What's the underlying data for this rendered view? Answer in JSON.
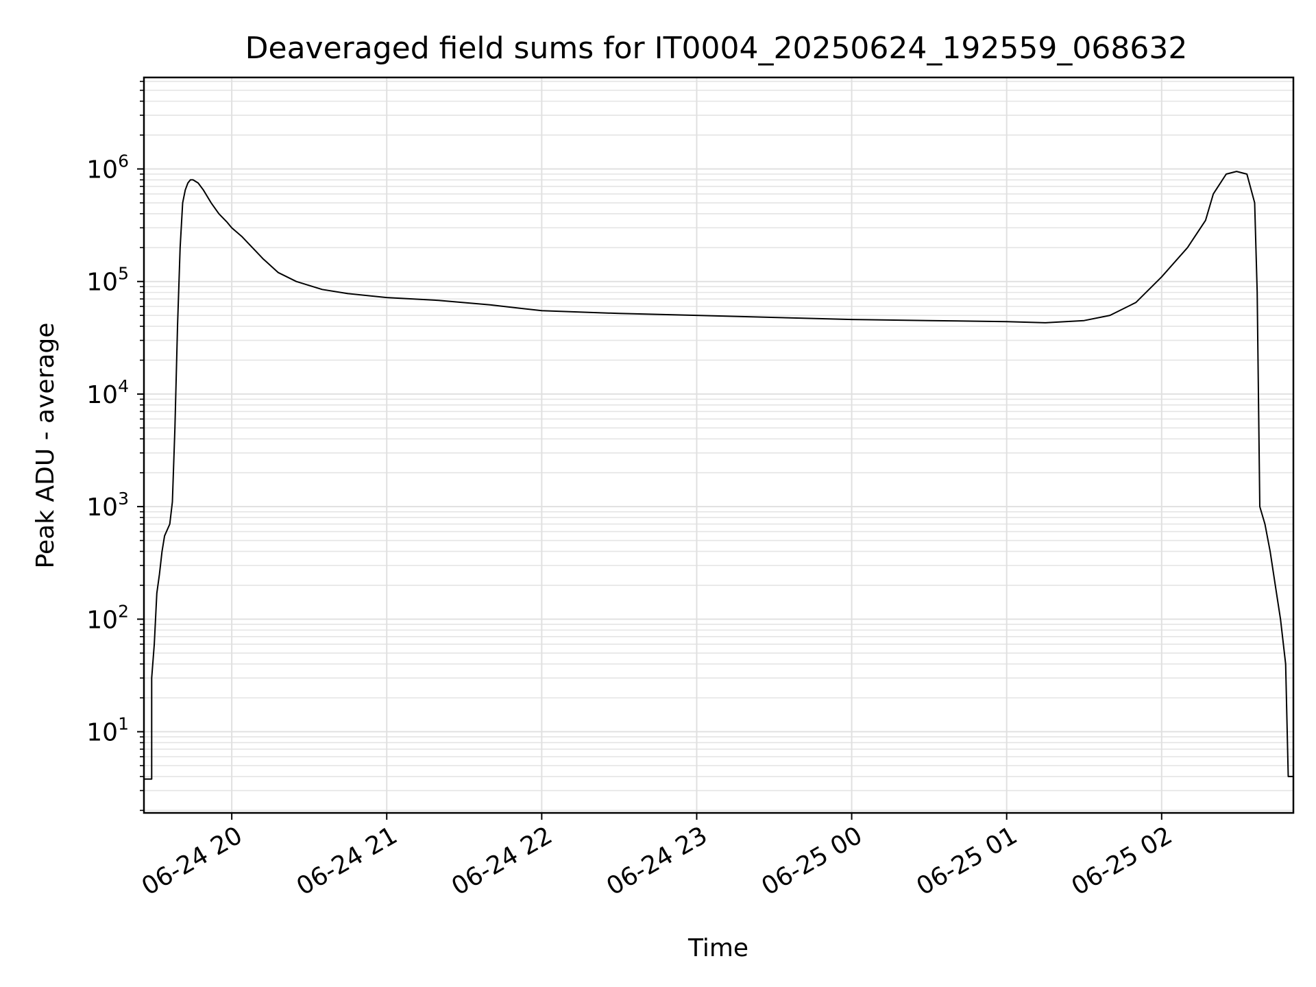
{
  "chart_data": {
    "type": "line",
    "title": "Deaveraged field sums for IT0004_20250624_192559_068632",
    "xlabel": "Time",
    "ylabel": "Peak ADU - average",
    "yscale": "log",
    "grid": true,
    "legend": "none",
    "line_color": "#000000",
    "xlim": [
      "2025-06-24 19:26",
      "2025-06-25 02:51"
    ],
    "ylim": [
      1.9,
      6500000
    ],
    "x_ticks": [
      {
        "label": "06-24 20",
        "t": "2025-06-24 20:00"
      },
      {
        "label": "06-24 21",
        "t": "2025-06-24 21:00"
      },
      {
        "label": "06-24 22",
        "t": "2025-06-24 22:00"
      },
      {
        "label": "06-24 23",
        "t": "2025-06-24 23:00"
      },
      {
        "label": "06-25 00",
        "t": "2025-06-25 00:00"
      },
      {
        "label": "06-25 01",
        "t": "2025-06-25 01:00"
      },
      {
        "label": "06-25 02",
        "t": "2025-06-25 02:00"
      }
    ],
    "y_ticks": [
      {
        "base": "10",
        "exp": "1",
        "value": 10
      },
      {
        "base": "10",
        "exp": "2",
        "value": 100
      },
      {
        "base": "10",
        "exp": "3",
        "value": 1000
      },
      {
        "base": "10",
        "exp": "4",
        "value": 10000
      },
      {
        "base": "10",
        "exp": "5",
        "value": 100000
      },
      {
        "base": "10",
        "exp": "6",
        "value": 1000000
      }
    ],
    "series": [
      {
        "x": [
          "2025-06-24 19:26",
          "2025-06-24 19:29",
          "2025-06-24 19:29",
          "2025-06-24 19:30",
          "2025-06-24 19:31",
          "2025-06-24 19:32",
          "2025-06-24 19:33",
          "2025-06-24 19:34",
          "2025-06-24 19:36",
          "2025-06-24 19:37",
          "2025-06-24 19:38",
          "2025-06-24 19:39",
          "2025-06-24 19:40",
          "2025-06-24 19:41",
          "2025-06-24 19:42",
          "2025-06-24 19:43",
          "2025-06-24 19:44",
          "2025-06-24 19:45",
          "2025-06-24 19:47",
          "2025-06-24 19:49",
          "2025-06-24 19:52",
          "2025-06-24 19:55",
          "2025-06-24 19:58",
          "2025-06-24 20:00",
          "2025-06-24 20:04",
          "2025-06-24 20:08",
          "2025-06-24 20:12",
          "2025-06-24 20:18",
          "2025-06-24 20:25",
          "2025-06-24 20:35",
          "2025-06-24 20:45",
          "2025-06-24 21:00",
          "2025-06-24 21:20",
          "2025-06-24 21:40",
          "2025-06-24 22:00",
          "2025-06-24 22:30",
          "2025-06-24 23:00",
          "2025-06-24 23:30",
          "2025-06-25 00:00",
          "2025-06-25 00:30",
          "2025-06-25 01:00",
          "2025-06-25 01:15",
          "2025-06-25 01:30",
          "2025-06-25 01:40",
          "2025-06-25 01:50",
          "2025-06-25 02:00",
          "2025-06-25 02:10",
          "2025-06-25 02:17",
          "2025-06-25 02:20",
          "2025-06-25 02:25",
          "2025-06-25 02:29",
          "2025-06-25 02:33",
          "2025-06-25 02:36",
          "2025-06-25 02:37",
          "2025-06-25 02:38",
          "2025-06-25 02:40",
          "2025-06-25 02:42",
          "2025-06-25 02:44",
          "2025-06-25 02:46",
          "2025-06-25 02:48",
          "2025-06-25 02:49",
          "2025-06-25 02:51"
        ],
        "y": [
          3.8,
          3.8,
          30,
          60,
          170,
          250,
          400,
          550,
          700,
          1100,
          5000,
          40000,
          200000,
          500000,
          650000,
          750000,
          800000,
          800000,
          750000,
          650000,
          500000,
          400000,
          340000,
          300000,
          250000,
          200000,
          160000,
          120000,
          100000,
          85000,
          78000,
          72000,
          68000,
          62000,
          55000,
          52000,
          50000,
          48000,
          46000,
          45000,
          44000,
          43000,
          45000,
          50000,
          65000,
          110000,
          200000,
          350000,
          600000,
          900000,
          950000,
          900000,
          500000,
          80000,
          1000,
          700,
          400,
          200,
          100,
          40,
          4,
          4
        ]
      }
    ]
  }
}
